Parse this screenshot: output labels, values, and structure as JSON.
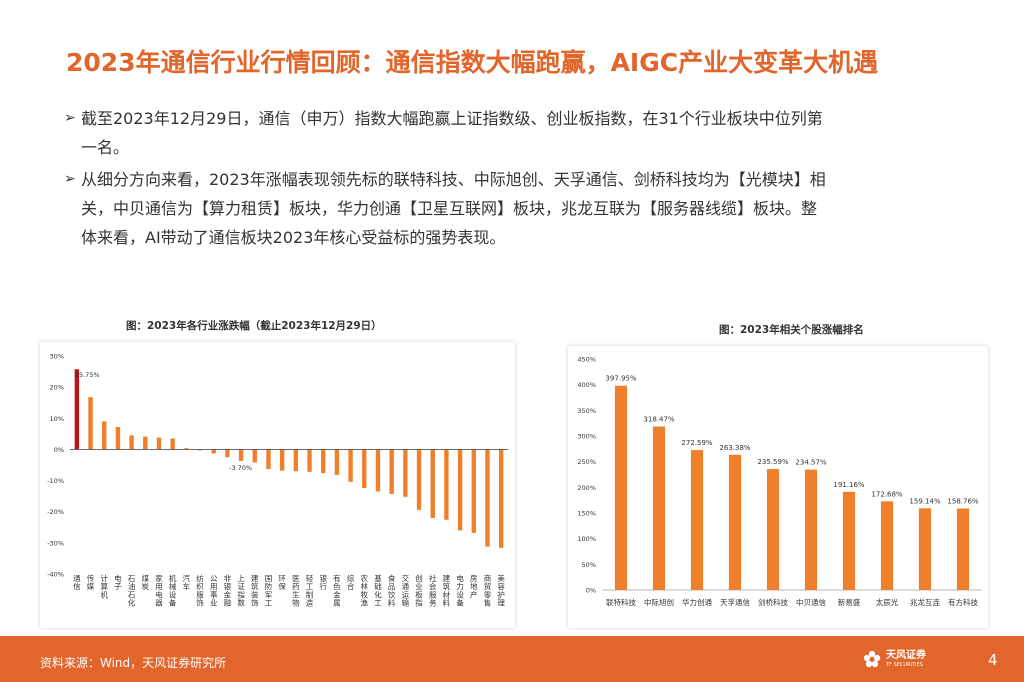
{
  "header": {
    "title": "2023年通信行业行情回顾：通信指数大幅跑赢，AIGC产业大变革大机遇"
  },
  "bullets": [
    {
      "line1": "截至2023年12月29日，通信（申万）指数大幅跑赢上证指数级、创业板指数，在31个行业板块中位列第",
      "line2": "一名。"
    },
    {
      "line1": "从细分方向来看，2023年涨幅表现领先标的联特科技、中际旭创、天孚通信、剑桥科技均为【光模块】相",
      "line2": "关，中贝通信为【算力租赁】板块，华力创通【卫星互联网】板块，兆龙互联为【服务器线缆】板块。整",
      "line3": "体来看，AI带动了通信板块2023年核心受益标的强势表现。"
    }
  ],
  "bullet_icon": "arrow-bullet-icon",
  "chart_data": [
    {
      "type": "bar",
      "title": "图：2023年各行业涨跌幅（截止2023年12月29日）",
      "categories": [
        "通信",
        "传媒",
        "计算机",
        "电子",
        "石油石化",
        "煤炭",
        "家用电器",
        "机械设备",
        "汽车",
        "纺织服饰",
        "公用事业",
        "非银金融",
        "上证指数",
        "建筑装饰",
        "国防军工",
        "环保",
        "医药生物",
        "轻工制造",
        "银行",
        "有色金属",
        "综合",
        "农林牧渔",
        "基础化工",
        "食品饮料",
        "交通运输",
        "创业板指",
        "社会服务",
        "建筑材料",
        "电力设备",
        "房地产",
        "商贸零售",
        "美容护理"
      ],
      "values": [
        25.75,
        16.8,
        9.0,
        7.2,
        4.5,
        4.1,
        3.8,
        3.5,
        0.4,
        -0.3,
        -1.3,
        -2.5,
        -3.7,
        -4.2,
        -6.3,
        -6.8,
        -7.0,
        -7.2,
        -7.6,
        -8.2,
        -10.4,
        -12.4,
        -13.5,
        -14.3,
        -15.2,
        -19.4,
        -22.0,
        -22.6,
        -26.0,
        -26.8,
        -31.2,
        -31.6
      ],
      "highlight": [
        0
      ],
      "data_labels": [
        {
          "index": 0,
          "text": "25.75%"
        },
        {
          "index": 12,
          "text": "-3.70%"
        }
      ],
      "yticks": [
        "30%",
        "20%",
        "10%",
        "0%",
        "-10%",
        "-20%",
        "-30%",
        "-40%"
      ],
      "ylim": [
        -40,
        30
      ],
      "colors": {
        "bar": "#f07f2b",
        "highlight": "#c0101a"
      }
    },
    {
      "type": "bar",
      "title": "图：2023年相关个股涨幅排名",
      "categories": [
        "联特科技",
        "中际旭创",
        "华力创通",
        "天孚通信",
        "剑桥科技",
        "中贝通信",
        "新易盛",
        "太辰光",
        "兆龙互连",
        "有方科技"
      ],
      "values": [
        397.95,
        318.47,
        272.59,
        263.38,
        235.59,
        234.57,
        191.16,
        172.68,
        159.14,
        158.76
      ],
      "data_labels": [
        "397.95%",
        "318.47%",
        "272.59%",
        "263.38%",
        "235.59%",
        "234.57%",
        "191.16%",
        "172.68%",
        "159.14%",
        "158.76%"
      ],
      "yticks": [
        "450%",
        "400%",
        "350%",
        "300%",
        "250%",
        "200%",
        "150%",
        "100%",
        "50%",
        "0%"
      ],
      "ylim": [
        0,
        450
      ],
      "colors": {
        "bar": "#f07f2b"
      }
    }
  ],
  "footer": {
    "source": "资料来源：Wind，天风证券研究所",
    "logo_cn": "天风证券",
    "logo_en": "TF SECURITIES",
    "page_number": "4"
  }
}
